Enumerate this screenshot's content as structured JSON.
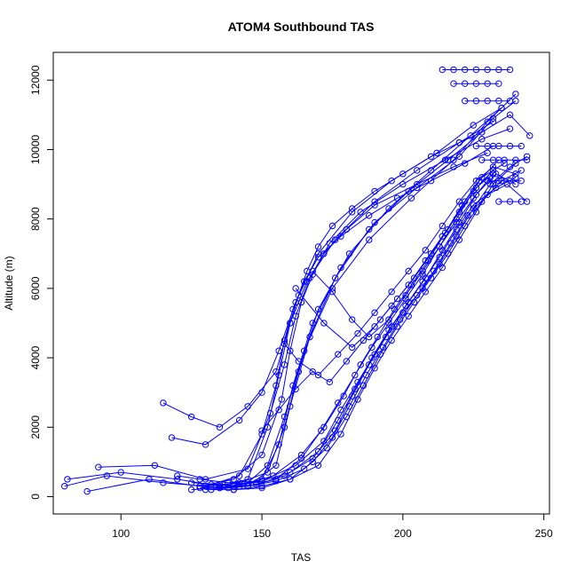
{
  "chart_data": {
    "type": "scatter",
    "title": "ATOM4 Southbound TAS",
    "xlabel": "TAS",
    "ylabel": "Altitude (m)",
    "xlim": [
      76,
      252
    ],
    "ylim": [
      -500,
      12800
    ],
    "x_ticks": [
      100,
      150,
      200,
      250
    ],
    "y_ticks": [
      0,
      2000,
      4000,
      6000,
      8000,
      10000,
      12000
    ],
    "grid": false,
    "legend": "none",
    "color": "#0000ff",
    "marker": "open-circle",
    "connected": true,
    "series": [
      {
        "x": [
          81,
          100,
          120,
          135,
          145,
          152,
          156,
          160,
          163,
          166,
          170,
          175,
          182,
          190,
          200,
          210,
          220,
          228
        ],
        "y": [
          500,
          700,
          500,
          300,
          500,
          2000,
          3500,
          5000,
          5800,
          6500,
          7200,
          7800,
          8300,
          8800,
          9300,
          9800,
          10200,
          10500
        ]
      },
      {
        "x": [
          80,
          95,
          115,
          130,
          142,
          150,
          155,
          158,
          161,
          165,
          170,
          178,
          188,
          198,
          210,
          222,
          232
        ],
        "y": [
          300,
          600,
          400,
          300,
          600,
          1800,
          3200,
          4500,
          5400,
          6200,
          6900,
          7500,
          8100,
          8600,
          9100,
          9600,
          10100
        ]
      },
      {
        "x": [
          88,
          110,
          128,
          140,
          150,
          157,
          160,
          164,
          168,
          172,
          180,
          190,
          205,
          218,
          230
        ],
        "y": [
          150,
          500,
          300,
          500,
          1200,
          2800,
          4200,
          5600,
          6400,
          7000,
          7700,
          8400,
          9000,
          9500,
          9900
        ]
      },
      {
        "x": [
          92,
          112,
          130,
          145,
          153,
          158,
          162,
          167,
          174,
          185,
          200,
          215,
          228,
          238
        ],
        "y": [
          850,
          900,
          500,
          800,
          2400,
          3800,
          5200,
          6300,
          7300,
          8200,
          9000,
          9700,
          10300,
          10600
        ]
      },
      {
        "x": [
          115,
          125,
          135,
          145,
          155,
          160,
          166,
          176,
          190,
          205,
          220,
          232
        ],
        "y": [
          2700,
          2300,
          2000,
          2600,
          3600,
          5000,
          6200,
          7400,
          8500,
          9400,
          10200,
          10800
        ]
      },
      {
        "x": [
          118,
          130,
          142,
          150,
          156,
          162,
          170,
          182,
          196,
          212,
          225,
          235
        ],
        "y": [
          1700,
          1500,
          2200,
          3000,
          4200,
          5600,
          7000,
          8200,
          9100,
          9900,
          10700,
          11200
        ]
      },
      {
        "x": [
          125,
          135,
          145,
          152,
          158,
          165,
          175,
          188,
          203,
          218,
          230,
          240
        ],
        "y": [
          200,
          250,
          400,
          900,
          2300,
          4200,
          6000,
          7400,
          8600,
          9700,
          10800,
          11600
        ]
      },
      {
        "x": [
          128,
          140,
          150,
          156,
          161,
          168,
          178,
          190,
          205,
          220,
          232,
          240
        ],
        "y": [
          250,
          300,
          500,
          1500,
          3200,
          5000,
          6600,
          7900,
          8900,
          9800,
          10900,
          11400
        ]
      },
      {
        "x": [
          130,
          142,
          152,
          158,
          163,
          170,
          181,
          195,
          210,
          224,
          235
        ],
        "y": [
          300,
          400,
          700,
          2000,
          3600,
          5400,
          7000,
          8300,
          9400,
          10400,
          11200
        ]
      },
      {
        "x": [
          132,
          145,
          155,
          160,
          167,
          176,
          188,
          202,
          216,
          228,
          238,
          245
        ],
        "y": [
          200,
          300,
          900,
          2600,
          4600,
          6300,
          7700,
          8800,
          9700,
          10500,
          11000,
          10400
        ]
      },
      {
        "x": [
          130,
          140,
          150,
          160,
          170,
          178,
          184,
          190,
          196,
          202,
          208,
          214,
          220,
          226,
          232,
          240
        ],
        "y": [
          200,
          200,
          300,
          500,
          900,
          1800,
          2800,
          3700,
          4500,
          5200,
          5900,
          6600,
          7400,
          8200,
          9000,
          9600
        ]
      },
      {
        "x": [
          128,
          138,
          148,
          158,
          168,
          176,
          182,
          188,
          194,
          200,
          207,
          213,
          219,
          225,
          231,
          238,
          244
        ],
        "y": [
          300,
          250,
          350,
          600,
          1100,
          1900,
          2900,
          3800,
          4600,
          5300,
          6000,
          6700,
          7500,
          8300,
          9000,
          9500,
          9800
        ]
      },
      {
        "x": [
          135,
          145,
          155,
          165,
          173,
          180,
          186,
          192,
          198,
          204,
          210,
          216,
          222,
          228,
          235,
          242
        ],
        "y": [
          250,
          300,
          450,
          800,
          1400,
          2300,
          3200,
          4100,
          4900,
          5600,
          6300,
          7000,
          7800,
          8500,
          9100,
          9400
        ]
      },
      {
        "x": [
          125,
          135,
          148,
          160,
          170,
          177,
          183,
          189,
          195,
          201,
          207,
          213,
          219,
          225,
          233,
          240
        ],
        "y": [
          400,
          350,
          400,
          700,
          1300,
          2200,
          3100,
          4000,
          4800,
          5500,
          6200,
          6900,
          7700,
          8400,
          8900,
          9200
        ]
      },
      {
        "x": [
          140,
          150,
          160,
          168,
          175,
          181,
          187,
          193,
          199,
          205,
          211,
          217,
          223,
          230,
          237,
          244
        ],
        "y": [
          200,
          250,
          500,
          1000,
          1700,
          2600,
          3500,
          4300,
          5100,
          5800,
          6500,
          7300,
          8100,
          8700,
          9000,
          8500
        ]
      },
      {
        "x": [
          132,
          142,
          154,
          164,
          172,
          179,
          185,
          191,
          197,
          203,
          209,
          215,
          221,
          227,
          234
        ],
        "y": [
          350,
          300,
          600,
          1200,
          2000,
          2900,
          3800,
          4600,
          5400,
          6100,
          6800,
          7600,
          8400,
          9100,
          9700
        ]
      },
      {
        "x": [
          120,
          128,
          138,
          150,
          162,
          172,
          178,
          184,
          190,
          196,
          202,
          208,
          214,
          220,
          226,
          233,
          240
        ],
        "y": [
          600,
          500,
          400,
          450,
          900,
          1600,
          2500,
          3300,
          4100,
          4900,
          5600,
          6300,
          7100,
          7900,
          8700,
          9300,
          9000
        ]
      },
      {
        "x": [
          145,
          155,
          164,
          171,
          177,
          183,
          189,
          195,
          201,
          207,
          213,
          219,
          225,
          232
        ],
        "y": [
          300,
          500,
          1100,
          1900,
          2700,
          3500,
          4300,
          5000,
          5700,
          6400,
          7200,
          8000,
          8800,
          9400
        ]
      },
      {
        "x": [
          150,
          156,
          162,
          168,
          174,
          180,
          186,
          192,
          198,
          204,
          210,
          216,
          222,
          228,
          236
        ],
        "y": [
          1900,
          2500,
          3100,
          3600,
          3300,
          3900,
          4500,
          5100,
          5700,
          6300,
          7000,
          7700,
          8500,
          9200,
          9600
        ]
      },
      {
        "x": [
          158,
          163,
          170,
          177,
          184,
          190,
          196,
          202,
          208,
          214,
          220,
          226,
          232,
          240
        ],
        "y": [
          4400,
          3900,
          3500,
          4100,
          4700,
          5300,
          5900,
          6500,
          7100,
          7800,
          8500,
          9100,
          9500,
          9300
        ]
      },
      {
        "x": [
          162,
          172,
          182,
          190,
          196,
          202,
          208,
          214,
          220,
          226,
          232
        ],
        "y": [
          6000,
          5000,
          4300,
          4900,
          5500,
          6100,
          6800,
          7500,
          8200,
          8900,
          9300
        ]
      },
      {
        "x": [
          168,
          175,
          182,
          188,
          195,
          201,
          207,
          213,
          219,
          225,
          231
        ],
        "y": [
          6500,
          5900,
          5100,
          4600,
          5100,
          5800,
          6500,
          7200,
          7900,
          8600,
          9200
        ]
      },
      {
        "x": [
          214,
          218,
          222,
          226,
          230,
          234,
          238
        ],
        "y": [
          12300,
          12300,
          12300,
          12300,
          12300,
          12300,
          12300
        ]
      },
      {
        "x": [
          218,
          222,
          226,
          230,
          234
        ],
        "y": [
          11900,
          11900,
          11900,
          11900,
          11900
        ]
      },
      {
        "x": [
          222,
          226,
          230,
          234,
          238
        ],
        "y": [
          11400,
          11400,
          11400,
          11400,
          11400
        ]
      },
      {
        "x": [
          226,
          230,
          234,
          238,
          242
        ],
        "y": [
          10100,
          10100,
          10100,
          10100,
          10100
        ]
      },
      {
        "x": [
          228,
          232,
          236,
          240,
          244
        ],
        "y": [
          9700,
          9700,
          9700,
          9700,
          9700
        ]
      },
      {
        "x": [
          230,
          234,
          238,
          242
        ],
        "y": [
          9100,
          9100,
          9100,
          9100
        ]
      },
      {
        "x": [
          234,
          238,
          242
        ],
        "y": [
          8500,
          8500,
          8500
        ]
      }
    ]
  }
}
